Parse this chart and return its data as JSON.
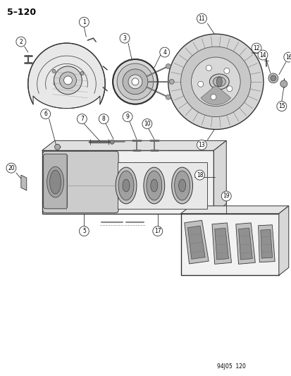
{
  "title": "5–120",
  "footer": "94J05  120",
  "bg_color": "#ffffff",
  "fig_width": 4.14,
  "fig_height": 5.33,
  "dpi": 100,
  "line_color": "#333333",
  "gray1": "#bbbbbb",
  "gray2": "#888888",
  "gray3": "#555555",
  "gray4": "#dddddd",
  "gray5": "#444444"
}
